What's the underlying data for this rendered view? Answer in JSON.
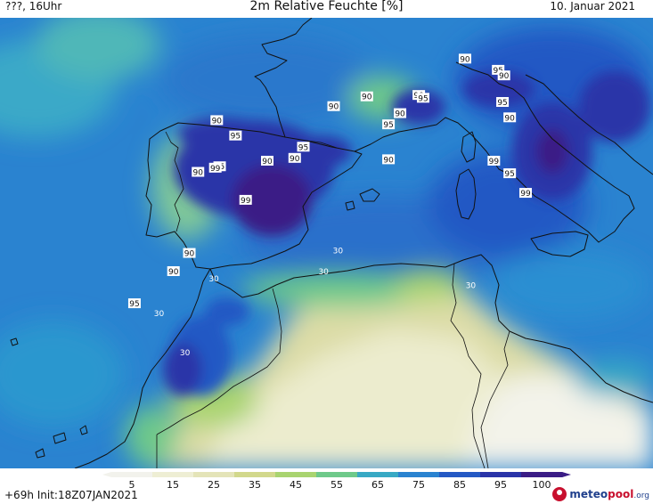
{
  "header": {
    "location": "???, 16Uhr",
    "title": "2m Relative Feuchte [%]",
    "date": "10. Januar 2021"
  },
  "footer": {
    "run_info": "+69h Init:18Z07JAN2021",
    "logo_main": "meteo",
    "logo_accent": "pool",
    "logo_tld": ".org"
  },
  "colorbar": {
    "ticks": [
      "5",
      "15",
      "25",
      "35",
      "45",
      "55",
      "65",
      "75",
      "85",
      "95",
      "100"
    ],
    "colors": [
      "#f2f2ec",
      "#eeeed4",
      "#e4e4b8",
      "#d2d88c",
      "#a9d470",
      "#6ec98a",
      "#38a9c4",
      "#2a83d0",
      "#2459c4",
      "#2a34a8",
      "#3b1d86"
    ]
  },
  "map_labels": [
    {
      "text": "90",
      "lon": -4.5,
      "lat": 43.4
    },
    {
      "text": "95",
      "lon": -3.2,
      "lat": 42.3
    },
    {
      "text": "95",
      "lon": 1.5,
      "lat": 41.5
    },
    {
      "text": "90",
      "lon": 0.9,
      "lat": 40.7
    },
    {
      "text": "90",
      "lon": -1.0,
      "lat": 40.5
    },
    {
      "text": "95",
      "lon": -4.3,
      "lat": 40.1
    },
    {
      "text": "99",
      "lon": -4.6,
      "lat": 40.0
    },
    {
      "text": "90",
      "lon": -5.8,
      "lat": 39.7
    },
    {
      "text": "99",
      "lon": -2.5,
      "lat": 37.7
    },
    {
      "text": "90",
      "lon": 3.6,
      "lat": 44.4
    },
    {
      "text": "90",
      "lon": 5.9,
      "lat": 45.1
    },
    {
      "text": "95",
      "lon": 7.4,
      "lat": 43.1
    },
    {
      "text": "90",
      "lon": 8.2,
      "lat": 43.9
    },
    {
      "text": "90",
      "lon": 9.5,
      "lat": 45.2
    },
    {
      "text": "95",
      "lon": 9.8,
      "lat": 45.0
    },
    {
      "text": "90",
      "lon": 12.7,
      "lat": 47.8
    },
    {
      "text": "95",
      "lon": 15.0,
      "lat": 47.0
    },
    {
      "text": "90",
      "lon": 15.4,
      "lat": 46.6
    },
    {
      "text": "95",
      "lon": 15.3,
      "lat": 44.7
    },
    {
      "text": "90",
      "lon": 15.8,
      "lat": 43.6
    },
    {
      "text": "90",
      "lon": 7.4,
      "lat": 40.6
    },
    {
      "text": "99",
      "lon": 14.7,
      "lat": 40.5
    },
    {
      "text": "95",
      "lon": 15.8,
      "lat": 39.6
    },
    {
      "text": "99",
      "lon": 16.9,
      "lat": 38.2
    },
    {
      "text": "90",
      "lon": -6.4,
      "lat": 33.9
    },
    {
      "text": "90",
      "lon": -7.5,
      "lat": 32.6
    },
    {
      "text": "95",
      "lon": -10.2,
      "lat": 30.3
    },
    {
      "text": "30",
      "lon": -8.5,
      "lat": 29.6
    },
    {
      "text": "30",
      "lon": -4.7,
      "lat": 32.1
    },
    {
      "text": "30",
      "lon": 2.9,
      "lat": 32.6
    },
    {
      "text": "30",
      "lon": 3.9,
      "lat": 34.1
    },
    {
      "text": "30",
      "lon": 13.1,
      "lat": 31.6
    },
    {
      "text": "30",
      "lon": -6.7,
      "lat": 26.8
    }
  ]
}
